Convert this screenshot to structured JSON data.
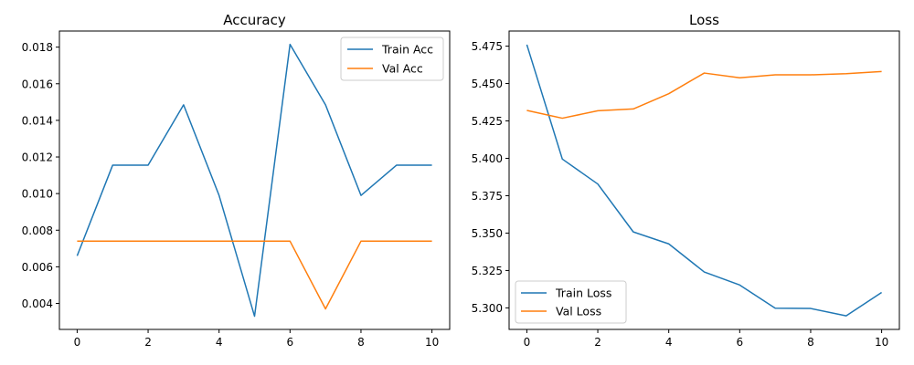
{
  "colors": {
    "train": "#1f77b4",
    "val": "#ff7f0e"
  },
  "chart_data": [
    {
      "type": "line",
      "title": "Accuracy",
      "xlabel": "",
      "ylabel": "",
      "x": [
        0,
        1,
        2,
        3,
        4,
        5,
        6,
        7,
        8,
        9,
        10
      ],
      "xlim": [
        -0.5,
        10.5
      ],
      "ylim": [
        0.00258,
        0.01888
      ],
      "xticks": [
        0,
        2,
        4,
        6,
        8,
        10
      ],
      "xtick_labels": [
        "0",
        "2",
        "4",
        "6",
        "8",
        "10"
      ],
      "yticks": [
        0.004,
        0.006,
        0.008,
        0.01,
        0.012,
        0.014,
        0.016,
        0.018
      ],
      "ytick_labels": [
        "0.004",
        "0.006",
        "0.008",
        "0.010",
        "0.012",
        "0.014",
        "0.016",
        "0.018"
      ],
      "grid": false,
      "legend": "upper-right",
      "series": [
        {
          "name": "Train Acc",
          "color": "#1f77b4",
          "values": [
            0.0066,
            0.01155,
            0.01155,
            0.01485,
            0.0099,
            0.0033,
            0.01815,
            0.01485,
            0.0099,
            0.01155,
            0.01155
          ]
        },
        {
          "name": "Val Acc",
          "color": "#ff7f0e",
          "values": [
            0.0074,
            0.0074,
            0.0074,
            0.0074,
            0.0074,
            0.0074,
            0.0074,
            0.0037,
            0.0074,
            0.0074,
            0.0074
          ]
        }
      ]
    },
    {
      "type": "line",
      "title": "Loss",
      "xlabel": "",
      "ylabel": "",
      "x": [
        0,
        1,
        2,
        3,
        4,
        5,
        6,
        7,
        8,
        9,
        10
      ],
      "xlim": [
        -0.5,
        10.5
      ],
      "ylim": [
        5.2856,
        5.4851
      ],
      "xticks": [
        0,
        2,
        4,
        6,
        8,
        10
      ],
      "xtick_labels": [
        "0",
        "2",
        "4",
        "6",
        "8",
        "10"
      ],
      "yticks": [
        5.3,
        5.325,
        5.35,
        5.375,
        5.4,
        5.425,
        5.45,
        5.475
      ],
      "ytick_labels": [
        "5.300",
        "5.325",
        "5.350",
        "5.375",
        "5.400",
        "5.425",
        "5.450",
        "5.475"
      ],
      "grid": false,
      "legend": "lower-left",
      "series": [
        {
          "name": "Train Loss",
          "color": "#1f77b4",
          "values": [
            5.476,
            5.3995,
            5.3828,
            5.3508,
            5.3428,
            5.324,
            5.3153,
            5.2998,
            5.2996,
            5.2947,
            5.3103
          ]
        },
        {
          "name": "Val Loss",
          "color": "#ff7f0e",
          "values": [
            5.432,
            5.4268,
            5.4318,
            5.433,
            5.4432,
            5.457,
            5.4538,
            5.4558,
            5.4558,
            5.4566,
            5.458
          ]
        }
      ]
    }
  ]
}
